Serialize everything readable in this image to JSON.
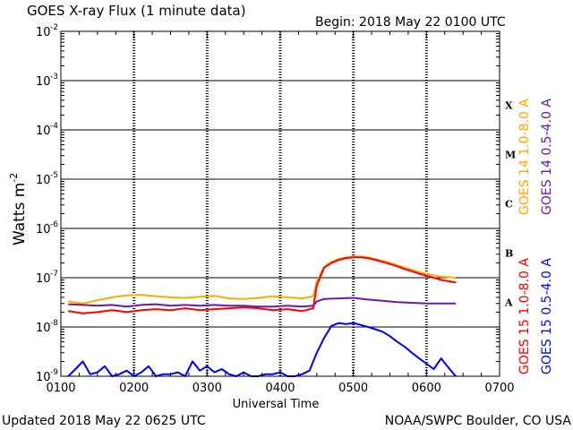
{
  "chart_data": {
    "type": "line",
    "title": "GOES X-ray Flux (1 minute data)",
    "begin_label": "Begin: 2018 May 22 0100 UTC",
    "xlabel": "Universal Time",
    "ylabel": "Watts m",
    "ylabel_superscript": "-2",
    "updated": "Updated 2018 May 22 0625 UTC",
    "credit": "NOAA/SWPC Boulder, CO USA",
    "x_unit": "hours UTC",
    "xlim": [
      1,
      7
    ],
    "x_ticks": [
      {
        "value": 1,
        "label": "0100"
      },
      {
        "value": 2,
        "label": "0200"
      },
      {
        "value": 3,
        "label": "0300"
      },
      {
        "value": 4,
        "label": "0400"
      },
      {
        "value": 5,
        "label": "0500"
      },
      {
        "value": 6,
        "label": "0600"
      },
      {
        "value": 7,
        "label": "0700"
      }
    ],
    "y_scale": "log",
    "ylim": [
      1e-09,
      0.01
    ],
    "y_ticks": [
      {
        "exp": -2,
        "base": "10",
        "power": "-2"
      },
      {
        "exp": -3,
        "base": "10",
        "power": "-3"
      },
      {
        "exp": -4,
        "base": "10",
        "power": "-4"
      },
      {
        "exp": -5,
        "base": "10",
        "power": "-5"
      },
      {
        "exp": -6,
        "base": "10",
        "power": "-6"
      },
      {
        "exp": -7,
        "base": "10",
        "power": "-7"
      },
      {
        "exp": -8,
        "base": "10",
        "power": "-8"
      },
      {
        "exp": -9,
        "base": "10",
        "power": "-9"
      }
    ],
    "flare_classes": [
      {
        "label": "X",
        "exp": -3.5
      },
      {
        "label": "M",
        "exp": -4.5
      },
      {
        "label": "C",
        "exp": -5.5
      },
      {
        "label": "B",
        "exp": -6.5
      },
      {
        "label": "A",
        "exp": -7.5
      }
    ],
    "grid": true,
    "legend_position": "right, vertical",
    "series": [
      {
        "name": "GOES 15 1.0-8.0 A",
        "color": "#ff0000",
        "x": [
          1.1,
          1.3,
          1.5,
          1.7,
          1.9,
          2.1,
          2.3,
          2.5,
          2.7,
          2.9,
          3.1,
          3.3,
          3.5,
          3.7,
          3.9,
          4.1,
          4.3,
          4.45,
          4.5,
          4.6,
          4.7,
          4.8,
          4.9,
          5.0,
          5.1,
          5.2,
          5.3,
          5.4,
          5.5,
          5.6,
          5.7,
          5.8,
          5.9,
          6.0,
          6.1,
          6.2,
          6.4
        ],
        "y": [
          2.1e-08,
          1.9e-08,
          2e-08,
          2.2e-08,
          2e-08,
          2.2e-08,
          2.3e-08,
          2.2e-08,
          2.4e-08,
          2.2e-08,
          2.3e-08,
          2.4e-08,
          2.5e-08,
          2.4e-08,
          2.2e-08,
          2.3e-08,
          2.1e-08,
          2.4e-08,
          7e-08,
          1.6e-07,
          2e-07,
          2.3e-07,
          2.5e-07,
          2.6e-07,
          2.6e-07,
          2.5e-07,
          2.3e-07,
          2.1e-07,
          1.9e-07,
          1.7e-07,
          1.5e-07,
          1.35e-07,
          1.2e-07,
          1.1e-07,
          1e-07,
          9e-08,
          8e-08
        ]
      },
      {
        "name": "GOES 14 1.0-8.0 A",
        "color": "#ffaa00",
        "x": [
          1.1,
          1.3,
          1.5,
          1.7,
          1.9,
          2.1,
          2.3,
          2.5,
          2.7,
          2.9,
          3.1,
          3.3,
          3.5,
          3.7,
          3.9,
          4.1,
          4.3,
          4.45,
          4.5,
          4.6,
          4.7,
          4.8,
          4.9,
          5.0,
          5.1,
          5.2,
          5.3,
          5.4,
          5.5,
          5.6,
          5.7,
          5.8,
          5.9,
          6.0,
          6.1,
          6.2,
          6.4
        ],
        "y": [
          3.3e-08,
          3e-08,
          3.5e-08,
          4e-08,
          4.4e-08,
          4.5e-08,
          4.2e-08,
          4e-08,
          3.9e-08,
          4.1e-08,
          4.3e-08,
          3.8e-08,
          3.7e-08,
          3.9e-08,
          4.2e-08,
          4e-08,
          3.8e-08,
          4.2e-08,
          8.5e-08,
          1.65e-07,
          2.1e-07,
          2.4e-07,
          2.6e-07,
          2.7e-07,
          2.7e-07,
          2.6e-07,
          2.4e-07,
          2.2e-07,
          2e-07,
          1.8e-07,
          1.6e-07,
          1.45e-07,
          1.3e-07,
          1.2e-07,
          1.12e-07,
          1.05e-07,
          1e-07
        ]
      },
      {
        "name": "GOES 15 0.5-4.0 A",
        "color": "#0000ff",
        "x": [
          1.1,
          1.2,
          1.3,
          1.4,
          1.5,
          1.6,
          1.7,
          1.8,
          1.9,
          2.0,
          2.1,
          2.2,
          2.3,
          2.4,
          2.5,
          2.6,
          2.7,
          2.8,
          2.9,
          3.0,
          3.1,
          3.2,
          3.3,
          3.4,
          3.5,
          3.6,
          3.7,
          3.8,
          3.9,
          4.0,
          4.1,
          4.2,
          4.3,
          4.4,
          4.5,
          4.6,
          4.7,
          4.8,
          4.9,
          5.0,
          5.1,
          5.2,
          5.3,
          5.4,
          5.5,
          5.6,
          5.7,
          5.8,
          5.9,
          6.0,
          6.1,
          6.2,
          6.3,
          6.4
        ],
        "y": [
          1e-09,
          1.4e-09,
          2e-09,
          1.1e-09,
          1.2e-09,
          1.6e-09,
          1e-09,
          1.1e-09,
          1.3e-09,
          1e-09,
          1.2e-09,
          1.6e-09,
          1e-09,
          1.1e-09,
          1.1e-09,
          1.2e-09,
          1e-09,
          2e-09,
          1.3e-09,
          1.6e-09,
          1.2e-09,
          1.4e-09,
          1.1e-09,
          1e-09,
          1.2e-09,
          1e-09,
          1e-09,
          1.1e-09,
          1.1e-09,
          1.2e-09,
          1e-09,
          1e-09,
          1.1e-09,
          1.3e-09,
          3e-09,
          6e-09,
          1.05e-08,
          1.2e-08,
          1.15e-08,
          1.2e-08,
          1.1e-08,
          1e-08,
          9e-09,
          8e-09,
          6.5e-09,
          5e-09,
          4e-09,
          3e-09,
          2.3e-09,
          1.8e-09,
          1.4e-09,
          2.3e-09,
          1.5e-09,
          1e-09
        ]
      },
      {
        "name": "GOES 14 0.5-4.0 A",
        "color": "#6a1aa8",
        "x": [
          1.1,
          1.3,
          1.5,
          1.7,
          1.9,
          2.1,
          2.3,
          2.5,
          2.7,
          2.9,
          3.1,
          3.3,
          3.5,
          3.7,
          3.9,
          4.1,
          4.3,
          4.45,
          4.5,
          4.6,
          4.8,
          5.0,
          5.2,
          5.4,
          5.6,
          5.8,
          6.0,
          6.2,
          6.4
        ],
        "y": [
          2.9e-08,
          2.8e-08,
          2.7e-08,
          2.8e-08,
          2.6e-08,
          2.8e-08,
          2.9e-08,
          2.7e-08,
          2.8e-08,
          2.7e-08,
          2.8e-08,
          2.7e-08,
          2.7e-08,
          2.6e-08,
          2.6e-08,
          2.7e-08,
          2.6e-08,
          2.7e-08,
          3.3e-08,
          3.7e-08,
          3.8e-08,
          3.9e-08,
          3.6e-08,
          3.4e-08,
          3.2e-08,
          3.1e-08,
          3e-08,
          3e-08,
          3e-08
        ]
      }
    ],
    "legend_groups": [
      {
        "series": [
          1,
          0
        ]
      },
      {
        "series": [
          3,
          2
        ]
      }
    ]
  }
}
